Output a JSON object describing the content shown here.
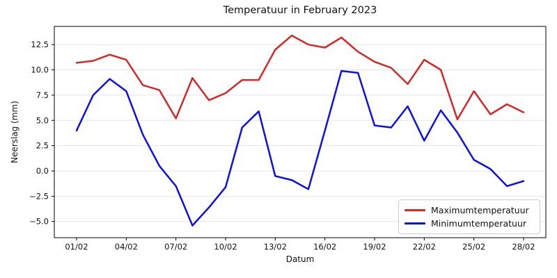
{
  "figure": {
    "title": "Temperatuur in February 2023",
    "xlabel": "Datum",
    "ylabel": "Neerslag (mm)"
  },
  "chart_data": {
    "type": "line",
    "title": "Temperatuur in February 2023",
    "xlabel": "Datum",
    "ylabel": "Neerslag (mm)",
    "grid": "horizontal",
    "legend_position": "lower right",
    "ylim": [
      -6.6,
      14.3
    ],
    "yticks": [
      12.5,
      10.0,
      7.5,
      5.0,
      2.5,
      0.0,
      -2.5,
      -5.0
    ],
    "x_tick_step": 3,
    "x_tick_labels": [
      "01/02",
      "04/02",
      "07/02",
      "10/02",
      "13/02",
      "16/02",
      "19/02",
      "22/02",
      "25/02",
      "28/02"
    ],
    "categories": [
      "01/02",
      "02/02",
      "03/02",
      "04/02",
      "05/02",
      "06/02",
      "07/02",
      "08/02",
      "09/02",
      "10/02",
      "11/02",
      "12/02",
      "13/02",
      "14/02",
      "15/02",
      "16/02",
      "17/02",
      "18/02",
      "19/02",
      "20/02",
      "21/02",
      "22/02",
      "23/02",
      "24/02",
      "25/02",
      "26/02",
      "27/02",
      "28/02"
    ],
    "series": [
      {
        "name": "Maximumtemperatuur",
        "color": "#d62728",
        "values": [
          10.7,
          10.9,
          11.5,
          11.0,
          8.5,
          8.0,
          5.2,
          9.2,
          7.0,
          7.7,
          9.0,
          9.0,
          12.0,
          13.4,
          12.5,
          12.2,
          13.2,
          11.8,
          10.8,
          10.2,
          8.6,
          11.0,
          10.0,
          5.1,
          7.9,
          5.6,
          6.6,
          5.8
        ]
      },
      {
        "name": "Minimumtemperatuur",
        "color": "#0e0ee6",
        "values": [
          4.0,
          7.5,
          9.1,
          7.9,
          3.6,
          0.5,
          -1.5,
          -5.4,
          -3.6,
          -1.6,
          4.3,
          5.9,
          -0.5,
          -0.9,
          -1.8,
          4.0,
          9.9,
          9.7,
          4.5,
          4.3,
          6.4,
          3.0,
          6.0,
          3.8,
          1.1,
          0.2,
          -1.5,
          -1.0
        ]
      }
    ]
  }
}
